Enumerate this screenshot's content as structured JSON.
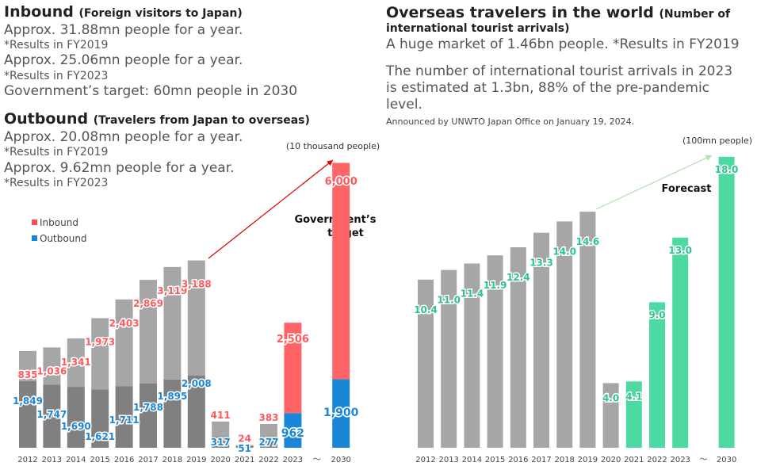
{
  "left": {
    "inbound_title": "Inbound",
    "inbound_sub": "(Foreign visitors to Japan)",
    "inbound_lines": [
      "Approx. 31.88mn people for a year.",
      "*Results in FY2019",
      "Approx. 25.06mn people for a year.",
      "*Results in FY2023",
      "Government’s target: 60mn people in 2030"
    ],
    "outbound_title": "Outbound",
    "outbound_sub": "(Travelers from Japan to overseas)",
    "outbound_lines": [
      "Approx. 20.08mn people for a year.",
      "*Results in FY2019",
      "Approx. 9.62mn people for a year.",
      "*Results in FY2023"
    ]
  },
  "right": {
    "title": "Overseas travelers in the world",
    "title_sub": "(Number of",
    "title_sub2": "international tourist arrivals)",
    "lines": [
      "A huge market of 1.46bn people. *Results in FY2019",
      "The number of international tourist arrivals in 2023",
      "is estimated at 1.3bn, 88% of the pre-pandemic",
      "level."
    ],
    "announce": "Announced by UNWTO Japan Office on January 19, 2024."
  },
  "chart_data": [
    {
      "type": "bar",
      "unit_label": "(10 thousand people)",
      "legend": [
        "Inbound",
        "Outbound"
      ],
      "categories": [
        "2012",
        "2013",
        "2014",
        "2015",
        "2016",
        "2017",
        "2018",
        "2019",
        "2020",
        "2021",
        "2022",
        "2023",
        "～",
        "2030"
      ],
      "series": [
        {
          "name": "Inbound",
          "values": [
            835,
            1036,
            1341,
            1973,
            2403,
            2869,
            3119,
            3188,
            411,
            24,
            383,
            2506,
            null,
            6000
          ],
          "labels": [
            "835",
            "1,036",
            "1,341",
            "1,973",
            "2,403",
            "2,869",
            "3,119",
            "3,188",
            "411",
            "24",
            "383",
            "2,506",
            "",
            "6,000"
          ]
        },
        {
          "name": "Outbound",
          "values": [
            1849,
            1747,
            1690,
            1621,
            1711,
            1788,
            1895,
            2008,
            317,
            51,
            277,
            962,
            null,
            1900
          ],
          "labels": [
            "1,849",
            "1,747",
            "1,690",
            "1,621",
            "1,711",
            "1,788",
            "1,895",
            "2,008",
            "317",
            "51",
            "277",
            "962",
            "",
            "1,900"
          ]
        }
      ],
      "annotation": "Government’s target",
      "colors": {
        "inbound_highlight": "#ff6467",
        "outbound_highlight": "#1a86d8",
        "inbound_gray": "#a6a6a6",
        "outbound_gray": "#808080"
      }
    },
    {
      "type": "bar",
      "unit_label": "(100mn people)",
      "categories": [
        "2012",
        "2013",
        "2014",
        "2015",
        "2016",
        "2017",
        "2018",
        "2019",
        "2020",
        "2021",
        "2022",
        "2023",
        "～",
        "2030"
      ],
      "values": [
        10.4,
        11.0,
        11.4,
        11.9,
        12.4,
        13.3,
        14.0,
        14.6,
        4.0,
        4.1,
        9.0,
        13.0,
        null,
        18.0
      ],
      "labels": [
        "10.4",
        "11.0",
        "11.4",
        "11.9",
        "12.4",
        "13.3",
        "14.0",
        "14.6",
        "4.0",
        "4.1",
        "9.0",
        "13.0",
        "",
        "18.0"
      ],
      "annotation": "Forecast",
      "colors": {
        "gray": "#a6a6a6",
        "highlight": "#4cd9a2"
      }
    }
  ]
}
